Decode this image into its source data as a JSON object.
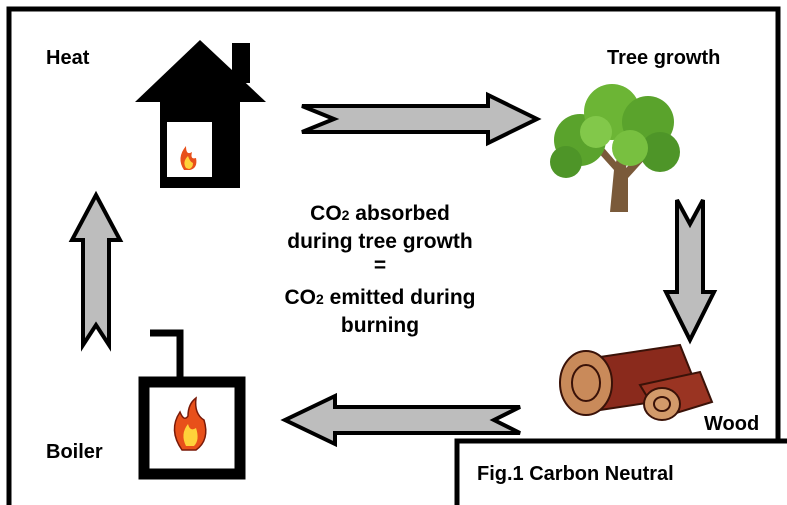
{
  "nodes": [
    {
      "label": "Heat"
    },
    {
      "label": "Tree growth"
    },
    {
      "label": "Wood"
    },
    {
      "label": "Boiler"
    }
  ],
  "center_text": [
    [
      "CO",
      "2",
      " absorbed"
    ],
    [
      "during tree growth"
    ],
    [
      "="
    ],
    [
      "CO",
      "2",
      " emitted during"
    ],
    [
      "burning"
    ]
  ],
  "caption": "Fig.1 Carbon Neutral"
}
